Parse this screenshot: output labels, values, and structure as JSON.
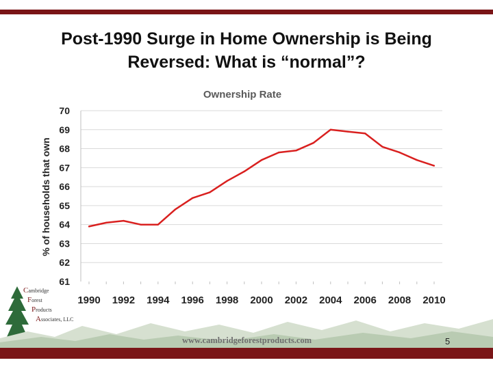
{
  "slide": {
    "title_line1": "Post-1990 Surge in Home Ownership is Being",
    "title_line2": "Reversed: What is “normal”?",
    "page_number": "5",
    "footer_url": "www.cambridgeforestproducts.com"
  },
  "logo": {
    "line1_initial": "C",
    "line1_rest": "ambridge",
    "line2_initial": "F",
    "line2_rest": "orest",
    "line3_initial": "P",
    "line3_rest": "roducts",
    "line4_initial": "A",
    "line4_rest": "ssociates, LLC"
  },
  "colors": {
    "accent_bar": "#7a1517",
    "line": "#d9201f",
    "grid": "#d9d9d9"
  },
  "chart_data": {
    "type": "line",
    "title": "Ownership Rate",
    "xlabel": "",
    "ylabel": "% of households that own",
    "xticks": [
      "1990",
      "1992",
      "1994",
      "1996",
      "1998",
      "2000",
      "2002",
      "2004",
      "2006",
      "2008",
      "2010"
    ],
    "yticks": [
      "70",
      "69",
      "68",
      "67",
      "66",
      "65",
      "64",
      "63",
      "62",
      "61"
    ],
    "xlim": [
      1990,
      2010
    ],
    "ylim": [
      61,
      70
    ],
    "grid": true,
    "series": [
      {
        "x": [
          1990,
          1991,
          1992,
          1993,
          1994,
          1995,
          1996,
          1997,
          1998,
          1999,
          2000,
          2001,
          2002,
          2003,
          2004,
          2005,
          2006,
          2007,
          2008,
          2009,
          2010
        ],
        "values": [
          63.9,
          64.1,
          64.2,
          64.0,
          64.0,
          64.8,
          65.4,
          65.7,
          66.3,
          66.8,
          67.4,
          67.8,
          67.9,
          68.3,
          69.0,
          68.9,
          68.8,
          68.1,
          67.8,
          67.4,
          67.1
        ]
      }
    ]
  }
}
